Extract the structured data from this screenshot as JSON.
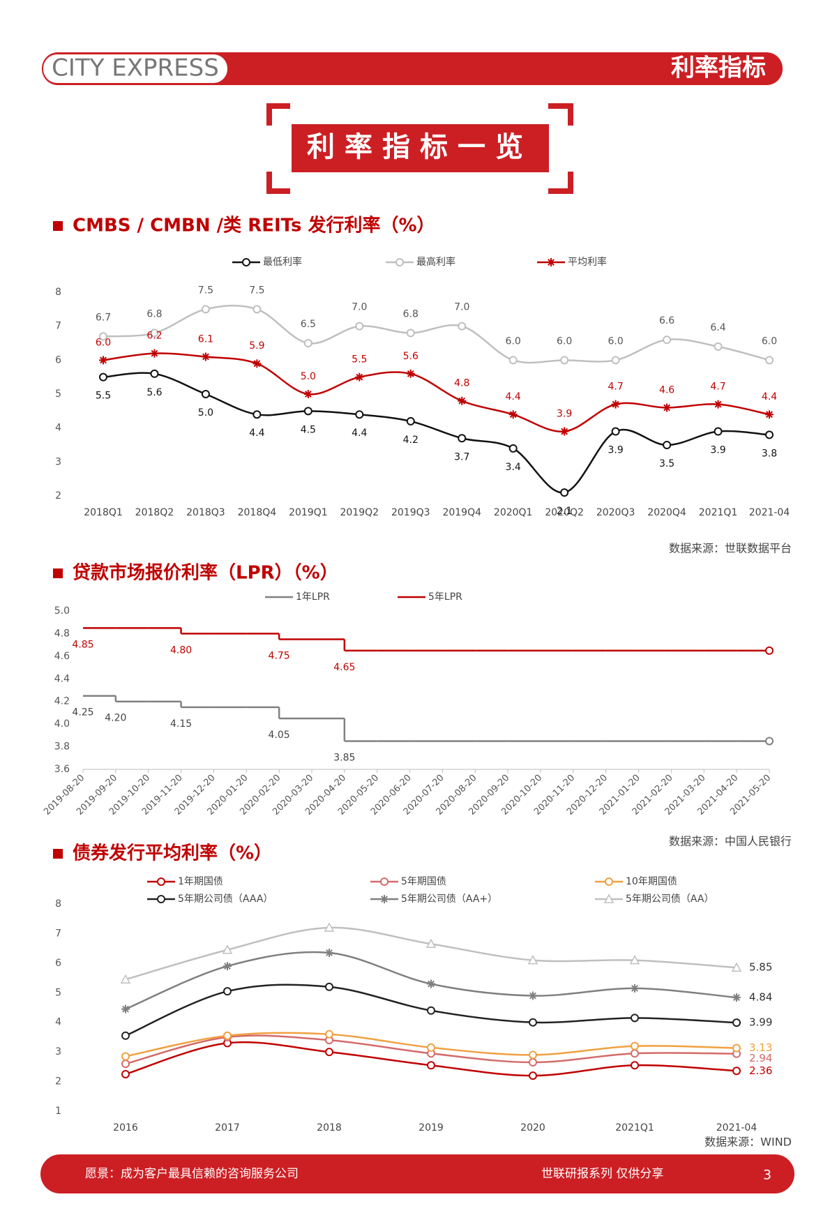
{
  "header": {
    "brand": "CITY EXPRESS",
    "section": "利率指标"
  },
  "banner": {
    "title": "利率指标一览"
  },
  "chart_data": [
    {
      "type": "line",
      "smooth": true,
      "title": "CMBS / CMBN /类 REITs 发行利率（%）",
      "source": "数据来源：世联数据平台",
      "categories": [
        "2018Q1",
        "2018Q2",
        "2018Q3",
        "2018Q4",
        "2019Q1",
        "2019Q2",
        "2019Q3",
        "2019Q4",
        "2020Q1",
        "2020Q2",
        "2020Q3",
        "2020Q4",
        "2021Q1",
        "2021-04"
      ],
      "ylim": [
        2,
        8
      ],
      "yticks": [
        2,
        3,
        4,
        5,
        6,
        7,
        8
      ],
      "series": [
        {
          "name": "最低利率",
          "color": "#111111",
          "marker": "circle",
          "values": [
            5.5,
            5.6,
            5.0,
            4.4,
            4.5,
            4.4,
            4.2,
            3.7,
            3.4,
            2.1,
            3.9,
            3.5,
            3.9,
            3.8
          ],
          "value_labels": [
            "5.5",
            "5.6",
            "5.0",
            "4.4",
            "4.5",
            "4.4",
            "4.2",
            "3.7",
            "3.4",
            "2.1",
            "3.9",
            "3.5",
            "3.9",
            "3.8"
          ]
        },
        {
          "name": "最高利率",
          "color": "#bfbfbf",
          "marker": "circle",
          "values": [
            6.7,
            6.8,
            7.5,
            7.5,
            6.5,
            7.0,
            6.8,
            7.0,
            6.0,
            6.0,
            6.0,
            6.6,
            6.4,
            6.0
          ],
          "value_labels": [
            "6.7",
            "6.8",
            "7.5",
            "7.5",
            "6.5",
            "7.0",
            "6.8",
            "7.0",
            "6.0",
            "6.0",
            "6.0",
            "6.6",
            "6.4",
            "6.0"
          ]
        },
        {
          "name": "平均利率",
          "color": "#c00000",
          "marker": "star",
          "values": [
            6.0,
            6.2,
            6.1,
            5.9,
            5.0,
            5.5,
            5.6,
            4.8,
            4.4,
            3.9,
            4.7,
            4.6,
            4.7,
            4.4
          ],
          "value_labels": [
            "6.0",
            "6.2",
            "6.1",
            "5.9",
            "5.0",
            "5.5",
            "5.6",
            "4.8",
            "4.4",
            "3.9",
            "4.7",
            "4.6",
            "4.7",
            "4.4"
          ]
        }
      ]
    },
    {
      "type": "step",
      "title": "贷款市场报价利率（LPR）（%）",
      "source": "数据来源：中国人民银行",
      "categories": [
        "2019-08-20",
        "2019-09-20",
        "2019-10-20",
        "2019-11-20",
        "2019-12-20",
        "2020-01-20",
        "2020-02-20",
        "2020-03-20",
        "2020-04-20",
        "2020-05-20",
        "2020-06-20",
        "2020-07-20",
        "2020-08-20",
        "2020-09-20",
        "2020-10-20",
        "2020-11-20",
        "2020-12-20",
        "2021-01-20",
        "2021-02-20",
        "2021-03-20",
        "2021-04-20",
        "2021-05-20"
      ],
      "ylim": [
        3.6,
        5.0
      ],
      "yticks": [
        3.6,
        3.8,
        {
          "value": 4.0,
          "label": "4.0"
        },
        4.2,
        4.4,
        4.6,
        4.8,
        {
          "value": 5.0,
          "label": "5.0"
        }
      ],
      "series": [
        {
          "name": "1年LPR",
          "color": "#808080",
          "values": [
            4.25,
            4.2,
            4.2,
            4.15,
            4.15,
            4.15,
            4.05,
            4.05,
            3.85,
            3.85,
            3.85,
            3.85,
            3.85,
            3.85,
            3.85,
            3.85,
            3.85,
            3.85,
            3.85,
            3.85,
            3.85,
            3.85
          ],
          "value_labels": [
            "4.25",
            "4.20",
            null,
            "4.15",
            null,
            null,
            "4.05",
            null,
            "3.85",
            null,
            null,
            null,
            null,
            null,
            null,
            null,
            null,
            null,
            null,
            null,
            null,
            null
          ]
        },
        {
          "name": "5年LPR",
          "color": "#c00000",
          "values": [
            4.85,
            4.85,
            4.85,
            4.8,
            4.8,
            4.8,
            4.75,
            4.75,
            4.65,
            4.65,
            4.65,
            4.65,
            4.65,
            4.65,
            4.65,
            4.65,
            4.65,
            4.65,
            4.65,
            4.65,
            4.65,
            4.65
          ],
          "value_labels": [
            "4.85",
            null,
            null,
            "4.80",
            null,
            null,
            "4.75",
            null,
            "4.65",
            null,
            null,
            null,
            null,
            null,
            null,
            null,
            null,
            null,
            null,
            null,
            null,
            null
          ]
        }
      ]
    },
    {
      "type": "line",
      "smooth": true,
      "end_labels": true,
      "title": "债券发行平均利率（%）",
      "source": "数据来源：WIND",
      "categories": [
        "2016",
        "2017",
        "2018",
        "2019",
        "2020",
        "2021Q1",
        "2021-04"
      ],
      "ylim": [
        1,
        8
      ],
      "yticks": [
        1,
        2,
        3,
        4,
        5,
        6,
        7,
        8
      ],
      "series": [
        {
          "name": "1年期国债",
          "color": "#c00000",
          "marker": "circle",
          "values": [
            2.25,
            3.3,
            3.0,
            2.55,
            2.2,
            2.55,
            2.36
          ]
        },
        {
          "name": "5年期国债",
          "color": "#d46a6a",
          "marker": "circle",
          "values": [
            2.6,
            3.5,
            3.4,
            2.95,
            2.65,
            2.95,
            2.94
          ]
        },
        {
          "name": "10年期国债",
          "color": "#f0a040",
          "marker": "circle",
          "values": [
            2.85,
            3.55,
            3.6,
            3.15,
            2.9,
            3.2,
            3.13
          ]
        },
        {
          "name": "5年期公司债（AAA）",
          "color": "#222222",
          "marker": "circle",
          "values": [
            3.55,
            5.05,
            5.2,
            4.4,
            4.0,
            4.15,
            3.99
          ]
        },
        {
          "name": "5年期公司债（AA+）",
          "color": "#7f7f7f",
          "marker": "star",
          "values": [
            4.45,
            5.9,
            6.35,
            5.3,
            4.9,
            5.15,
            4.84
          ]
        },
        {
          "name": "5年期公司债（AA）",
          "color": "#bfbfbf",
          "marker": "triangle",
          "values": [
            5.45,
            6.45,
            7.2,
            6.65,
            6.1,
            6.1,
            5.85
          ]
        }
      ]
    }
  ],
  "footer": {
    "vision": "愿景：成为客户最具信赖的咨询服务公司",
    "series": "世联研报系列 仅供分享",
    "page": "3"
  }
}
